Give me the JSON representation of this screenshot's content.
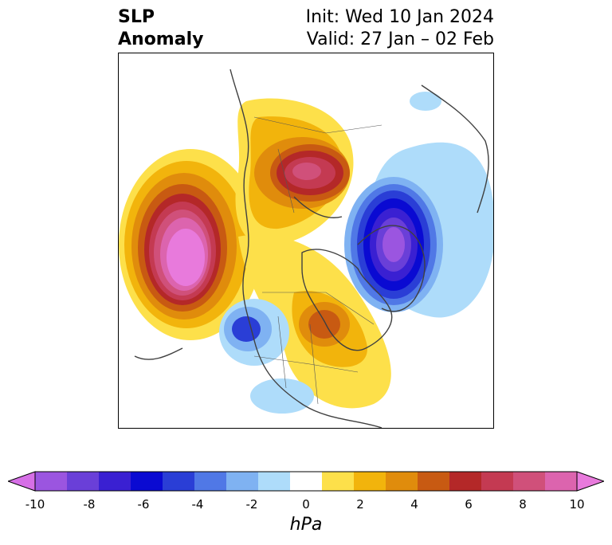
{
  "title": {
    "left_line1": "SLP",
    "left_line2": "Anomaly",
    "right_line1": "Init: Wed 10 Jan 2024",
    "right_line2": "Valid: 27 Jan – 02 Feb"
  },
  "colorbar": {
    "label": "hPa",
    "ticks": [
      "-10",
      "-8",
      "-6",
      "-4",
      "-2",
      "0",
      "2",
      "4",
      "6",
      "8",
      "10"
    ],
    "extend": "both",
    "colors": [
      "#d66fe6",
      "#9b55e0",
      "#6a3fd8",
      "#3a20d2",
      "#0a0ad2",
      "#2a3ed6",
      "#5078e6",
      "#7fb2f2",
      "#aedcfa",
      "#ffffff",
      "#fde04a",
      "#f2b40c",
      "#e08c0c",
      "#c85a12",
      "#b42828",
      "#c43a52",
      "#d0507a",
      "#dc64ae",
      "#e87adc"
    ]
  },
  "map": {
    "projection": "north polar stereographic",
    "features": [
      "coastlines",
      "country borders",
      "US state borders"
    ]
  }
}
